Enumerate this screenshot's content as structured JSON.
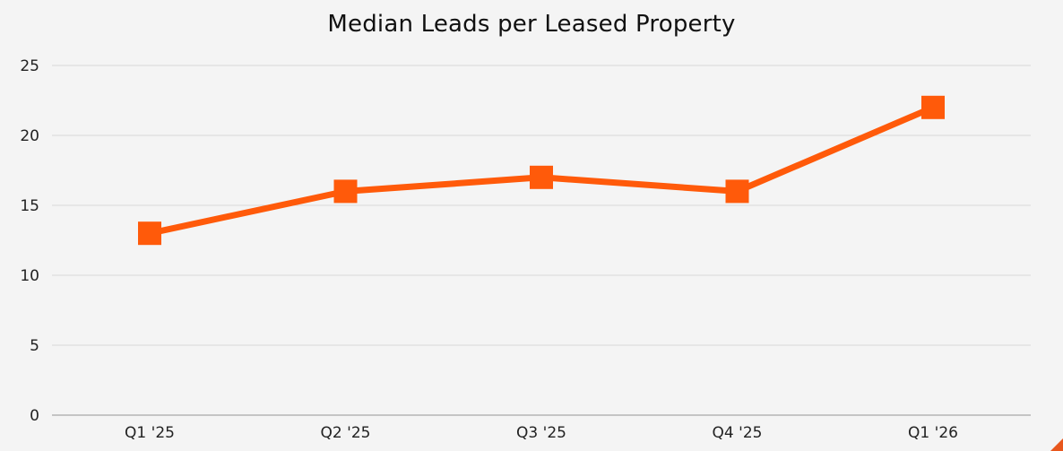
{
  "colors": {
    "background": "#f4f4f4",
    "series": "#ff5a0a",
    "grid": "#d9d9d9",
    "axis": "#b3b3b3",
    "text": "#222222"
  },
  "chart_data": {
    "type": "line",
    "title": "Median Leads per Leased Property",
    "xlabel": "",
    "ylabel": "",
    "categories": [
      "Q1 '25",
      "Q2 '25",
      "Q3 '25",
      "Q4 '25",
      "Q1 '26"
    ],
    "series": [
      {
        "values": [
          13,
          16,
          17,
          16,
          22
        ],
        "marker": "square"
      }
    ],
    "ylim": [
      0,
      25
    ],
    "yticks": [
      0,
      5,
      10,
      15,
      20,
      25
    ],
    "grid": true,
    "legend": "none"
  }
}
